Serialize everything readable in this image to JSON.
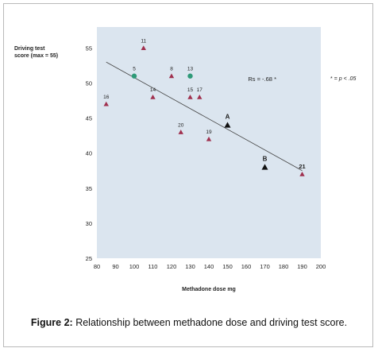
{
  "figure": {
    "label": "Figure 2:",
    "caption": "Relationship between methadone dose and driving test score."
  },
  "note": {
    "star": "*",
    "eq": "=",
    "p": "p < .05"
  },
  "chart_data": {
    "type": "scatter",
    "xlabel": "Methadone dose mg",
    "ylabel_line1": "Driving test",
    "ylabel_line2": "score (max = 55)",
    "xlim": [
      80,
      200
    ],
    "ylim": [
      25,
      58
    ],
    "xticks": [
      80,
      90,
      100,
      110,
      120,
      130,
      140,
      150,
      160,
      170,
      180,
      190,
      200
    ],
    "yticks": [
      25,
      30,
      35,
      40,
      45,
      50,
      55
    ],
    "grid": false,
    "plot_background": "#dbe5ef",
    "annotation": "Rs = -.68 *",
    "trendline": {
      "x1": 85,
      "y1": 53,
      "x2": 190,
      "y2": 37.5,
      "color": "#444444"
    },
    "points": [
      {
        "label": "16",
        "x": 85,
        "y": 47,
        "marker": "triangle",
        "color": "#a0304e"
      },
      {
        "label": "5",
        "x": 100,
        "y": 51,
        "marker": "circle",
        "color": "#2e9a78"
      },
      {
        "label": "11",
        "x": 105,
        "y": 55,
        "marker": "triangle",
        "color": "#a0304e"
      },
      {
        "label": "14",
        "x": 110,
        "y": 48,
        "marker": "triangle",
        "color": "#a0304e"
      },
      {
        "label": "8",
        "x": 120,
        "y": 51,
        "marker": "triangle",
        "color": "#a0304e"
      },
      {
        "label": "20",
        "x": 125,
        "y": 43,
        "marker": "triangle",
        "color": "#a0304e"
      },
      {
        "label": "13",
        "x": 130,
        "y": 51,
        "marker": "circle",
        "color": "#2e9a78"
      },
      {
        "label": "15",
        "x": 130,
        "y": 48,
        "marker": "triangle",
        "color": "#a0304e"
      },
      {
        "label": "17",
        "x": 135,
        "y": 48,
        "marker": "triangle",
        "color": "#a0304e"
      },
      {
        "label": "19",
        "x": 140,
        "y": 42,
        "marker": "triangle",
        "color": "#a0304e"
      },
      {
        "label": "A",
        "x": 150,
        "y": 44,
        "marker": "triangle",
        "color": "#111111"
      },
      {
        "label": "B",
        "x": 170,
        "y": 38,
        "marker": "triangle",
        "color": "#111111"
      },
      {
        "label": "21",
        "x": 190,
        "y": 37,
        "marker": "triangle",
        "color": "#a0304e"
      }
    ]
  }
}
